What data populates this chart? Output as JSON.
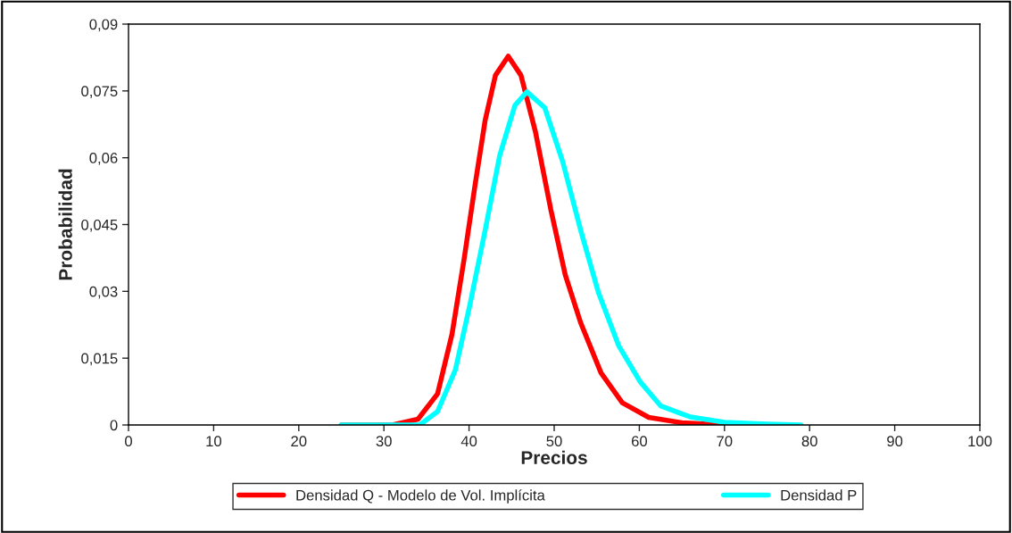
{
  "chart_data": {
    "type": "line",
    "xlabel": "Precios",
    "ylabel": "Probabilidad",
    "xlim": [
      0,
      100
    ],
    "xticks": [
      0,
      10,
      20,
      30,
      40,
      50,
      60,
      70,
      80,
      90,
      100
    ],
    "ylim": [
      0,
      0.09
    ],
    "yticks": [
      {
        "value": 0,
        "label": "0"
      },
      {
        "value": 0.015,
        "label": "0,015"
      },
      {
        "value": 0.03,
        "label": "0,03"
      },
      {
        "value": 0.045,
        "label": "0,045"
      },
      {
        "value": 0.06,
        "label": "0,06"
      },
      {
        "value": 0.075,
        "label": "0,075"
      },
      {
        "value": 0.09,
        "label": "0,09"
      }
    ],
    "grid": false,
    "legend": "bottom",
    "marker": "none",
    "line_style": "solid",
    "series": [
      {
        "name": "Densidad Q - Modelo de Vol. Implícita",
        "color": "#ff0000",
        "x": [
          25,
          31,
          34.0,
          36.3,
          38.0,
          39.4,
          40.7,
          41.9,
          43.1,
          44.6,
          46.1,
          47.8,
          49.6,
          51.3,
          53.1,
          55.5,
          58.0,
          61.1,
          65,
          70
        ],
        "values": [
          0,
          0,
          0.0013,
          0.007,
          0.0204,
          0.037,
          0.0538,
          0.0685,
          0.0785,
          0.0828,
          0.0785,
          0.0658,
          0.0484,
          0.0337,
          0.023,
          0.0117,
          0.005,
          0.0017,
          0.0005,
          0
        ]
      },
      {
        "name": "Densidad P",
        "color": "#00ffff",
        "x": [
          25,
          34.2,
          36.3,
          38.4,
          40.1,
          41.9,
          43.6,
          45.4,
          46.8,
          48.9,
          51.0,
          53.1,
          55.2,
          57.6,
          60.1,
          62.5,
          66,
          70,
          75,
          79
        ],
        "values": [
          0,
          0,
          0.003,
          0.0124,
          0.027,
          0.0438,
          0.0605,
          0.0718,
          0.0748,
          0.0712,
          0.0591,
          0.0438,
          0.0297,
          0.0177,
          0.0097,
          0.0043,
          0.0018,
          0.0006,
          0.0002,
          0
        ]
      }
    ]
  }
}
